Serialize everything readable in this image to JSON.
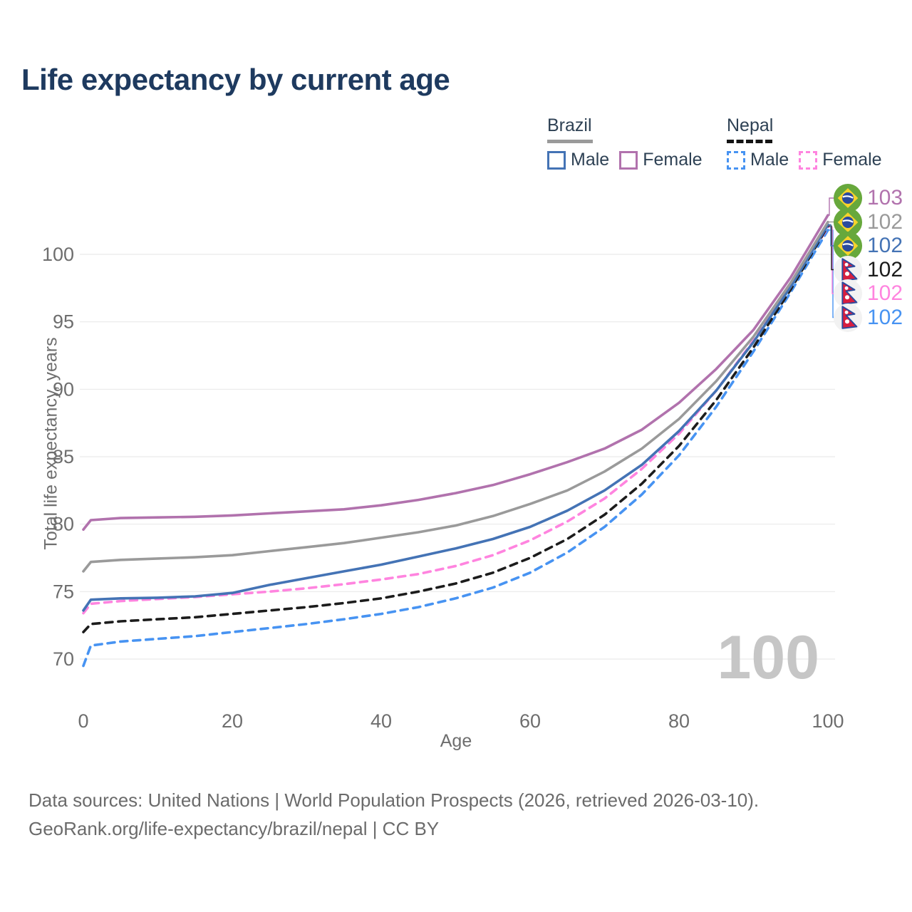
{
  "title": "Life expectancy by current age",
  "legend": {
    "groups": [
      {
        "country": "Brazil",
        "line_style": "solid",
        "color": "#9a9a9a",
        "items": [
          {
            "label": "Male",
            "color": "#4473b5",
            "dashed": false
          },
          {
            "label": "Female",
            "color": "#b172ad",
            "dashed": false
          }
        ]
      },
      {
        "country": "Nepal",
        "line_style": "dashed",
        "color": "#141414",
        "items": [
          {
            "label": "Male",
            "color": "#4793f2",
            "dashed": true
          },
          {
            "label": "Female",
            "color": "#ff84df",
            "dashed": true
          }
        ]
      }
    ]
  },
  "chart_data": {
    "type": "line",
    "title": "Life expectancy by current age",
    "xlabel": "Age",
    "ylabel": "Total life expectancy, years",
    "xlim": [
      0,
      100
    ],
    "ylim": [
      69,
      104
    ],
    "xticks": [
      0,
      20,
      40,
      60,
      80,
      100
    ],
    "yticks": [
      70,
      75,
      80,
      85,
      90,
      95,
      100
    ],
    "grid": "horizontal",
    "legend_position": "top-right",
    "watermark": "100",
    "x": [
      0,
      1,
      5,
      10,
      15,
      20,
      25,
      30,
      35,
      40,
      45,
      50,
      55,
      60,
      65,
      70,
      75,
      80,
      85,
      90,
      95,
      100
    ],
    "series": [
      {
        "name": "Brazil Female",
        "country": "Brazil",
        "sex": "Female",
        "color": "#b172ad",
        "dash": "solid",
        "end_label": "103",
        "values": [
          79.6,
          80.3,
          80.45,
          80.5,
          80.55,
          80.65,
          80.8,
          80.95,
          81.1,
          81.4,
          81.8,
          82.3,
          82.9,
          83.7,
          84.6,
          85.6,
          87.0,
          89.0,
          91.5,
          94.4,
          98.3,
          102.9
        ]
      },
      {
        "name": "Brazil",
        "country": "Brazil",
        "sex": "Both",
        "color": "#9a9a9a",
        "dash": "solid",
        "end_label": "102",
        "values": [
          76.5,
          77.2,
          77.35,
          77.45,
          77.55,
          77.7,
          78.0,
          78.3,
          78.6,
          79.0,
          79.4,
          79.9,
          80.6,
          81.5,
          82.5,
          83.9,
          85.6,
          87.8,
          90.6,
          93.9,
          97.9,
          102.4
        ]
      },
      {
        "name": "Brazil Male",
        "country": "Brazil",
        "sex": "Male",
        "color": "#4473b5",
        "dash": "solid",
        "end_label": "102",
        "values": [
          73.6,
          74.4,
          74.5,
          74.55,
          74.65,
          74.9,
          75.5,
          76.0,
          76.5,
          77.0,
          77.6,
          78.2,
          78.9,
          79.8,
          81.0,
          82.5,
          84.4,
          86.9,
          89.9,
          93.5,
          97.6,
          102.2
        ]
      },
      {
        "name": "Nepal",
        "country": "Nepal",
        "sex": "Both",
        "color": "#1c1c1c",
        "dash": "dashed",
        "end_label": "102",
        "values": [
          72.0,
          72.6,
          72.8,
          72.95,
          73.1,
          73.35,
          73.6,
          73.85,
          74.15,
          74.5,
          75.0,
          75.6,
          76.4,
          77.5,
          78.9,
          80.7,
          83.0,
          85.8,
          89.2,
          93.1,
          97.4,
          102.1
        ]
      },
      {
        "name": "Nepal Female",
        "country": "Nepal",
        "sex": "Female",
        "color": "#ff84df",
        "dash": "dashed",
        "end_label": "102",
        "values": [
          73.4,
          74.1,
          74.3,
          74.45,
          74.6,
          74.8,
          75.0,
          75.25,
          75.55,
          75.9,
          76.3,
          76.9,
          77.7,
          78.8,
          80.2,
          81.9,
          84.1,
          86.7,
          89.9,
          93.6,
          97.7,
          102.0
        ]
      },
      {
        "name": "Nepal Male",
        "country": "Nepal",
        "sex": "Male",
        "color": "#4793f2",
        "dash": "dashed",
        "end_label": "102",
        "values": [
          69.5,
          71.0,
          71.3,
          71.5,
          71.7,
          72.0,
          72.3,
          72.6,
          72.95,
          73.35,
          73.85,
          74.5,
          75.3,
          76.4,
          77.9,
          79.8,
          82.2,
          85.1,
          88.7,
          92.8,
          97.2,
          101.8
        ]
      }
    ],
    "end_labels": [
      {
        "flag": "brazil",
        "value": "103",
        "color": "#b172ad",
        "series": "Brazil Female"
      },
      {
        "flag": "brazil",
        "value": "102",
        "color": "#9a9a9a",
        "series": "Brazil"
      },
      {
        "flag": "brazil",
        "value": "102",
        "color": "#4473b5",
        "series": "Brazil Male"
      },
      {
        "flag": "nepal",
        "value": "102",
        "color": "#1c1c1c",
        "series": "Nepal"
      },
      {
        "flag": "nepal",
        "value": "102",
        "color": "#ff84df",
        "series": "Nepal Female"
      },
      {
        "flag": "nepal",
        "value": "102",
        "color": "#4793f2",
        "series": "Nepal Male"
      }
    ]
  },
  "footer": {
    "line1": "Data sources: United Nations | World Population Prospects (2026, retrieved 2026-03-10).",
    "line2": "GeoRank.org/life-expectancy/brazil/nepal | CC BY"
  },
  "colors": {
    "title_text": "#1e3a5f",
    "legend_text": "#2e4154",
    "tick_text": "#6e6e6e",
    "gridline": "#e9e9e9",
    "watermark": "#c6c6c6",
    "footer_text": "#6b6b6b"
  }
}
